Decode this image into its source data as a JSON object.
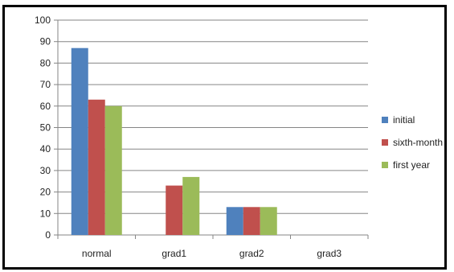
{
  "chart_data": {
    "type": "bar",
    "categories": [
      "normal",
      "grad1",
      "grad2",
      "grad3"
    ],
    "series": [
      {
        "name": "initial",
        "color": "#4f81bd",
        "values": [
          87,
          0,
          13,
          0
        ]
      },
      {
        "name": "sixth-month",
        "color": "#c0504d",
        "values": [
          63,
          23,
          13,
          0
        ]
      },
      {
        "name": "first year",
        "color": "#9bbb59",
        "values": [
          60,
          27,
          13,
          0
        ]
      }
    ],
    "ylim": [
      0,
      100
    ],
    "yticks": [
      0,
      10,
      20,
      30,
      40,
      50,
      60,
      70,
      80,
      90,
      100
    ],
    "grid": true,
    "legend": "right",
    "title": "",
    "xlabel": "",
    "ylabel": ""
  }
}
